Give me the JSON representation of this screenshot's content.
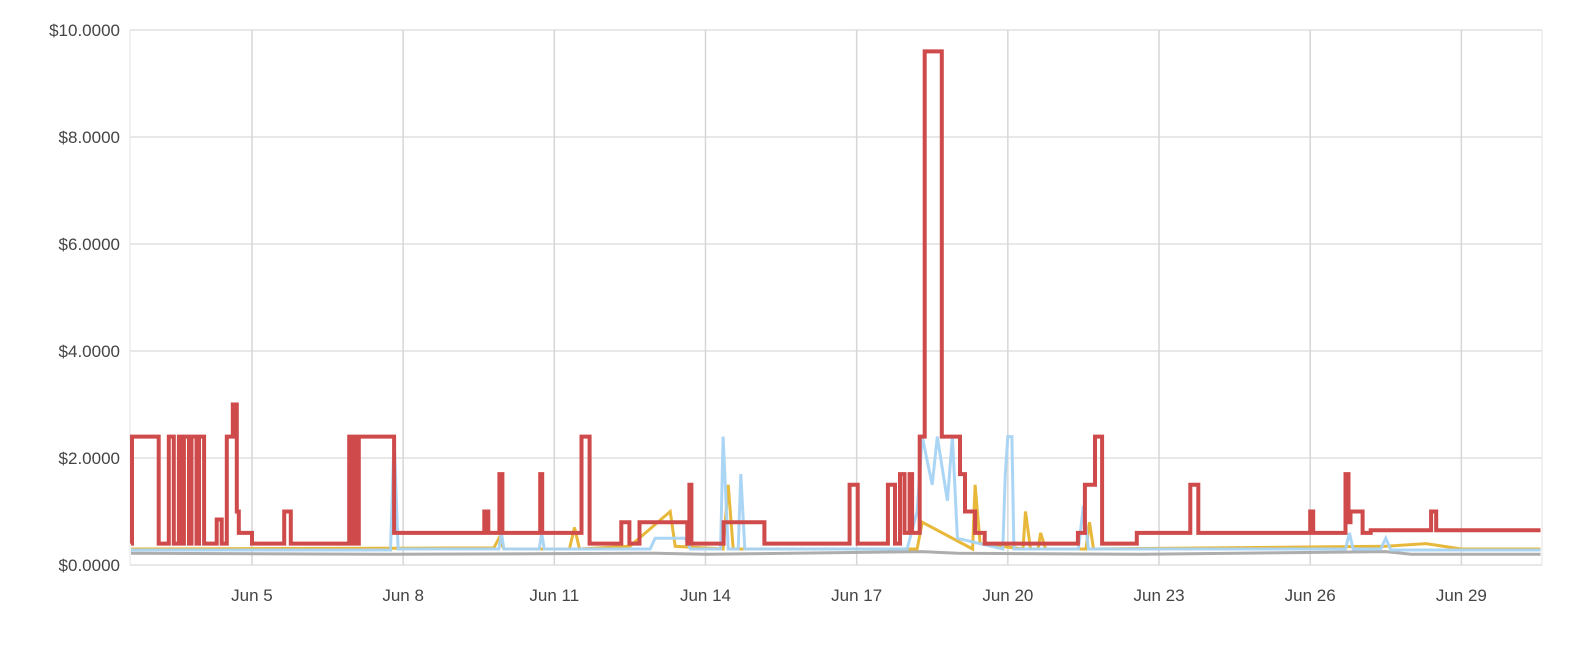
{
  "chart_data": {
    "type": "line",
    "title": "",
    "xlabel": "",
    "ylabel": "",
    "xlim": [
      2.58,
      30.6
    ],
    "ylim": [
      0,
      10
    ],
    "grid": true,
    "legend": "none",
    "y_ticks": [
      {
        "value": 0,
        "label": "$0.0000"
      },
      {
        "value": 2,
        "label": "$2.0000"
      },
      {
        "value": 4,
        "label": "$4.0000"
      },
      {
        "value": 6,
        "label": "$6.0000"
      },
      {
        "value": 8,
        "label": "$8.0000"
      },
      {
        "value": 10,
        "label": "$10.0000"
      }
    ],
    "x_ticks": [
      {
        "value": 5,
        "label": "Jun 5"
      },
      {
        "value": 8,
        "label": "Jun 8"
      },
      {
        "value": 11,
        "label": "Jun 11"
      },
      {
        "value": 14,
        "label": "Jun 14"
      },
      {
        "value": 17,
        "label": "Jun 17"
      },
      {
        "value": 20,
        "label": "Jun 20"
      },
      {
        "value": 23,
        "label": "Jun 23"
      },
      {
        "value": 26,
        "label": "Jun 26"
      },
      {
        "value": 29,
        "label": "Jun 29"
      }
    ],
    "series": [
      {
        "name": "gray",
        "color": "#a9a9a9",
        "step": false,
        "points": [
          [
            2.6,
            0.22
          ],
          [
            7.8,
            0.2
          ],
          [
            13,
            0.22
          ],
          [
            14,
            0.2
          ],
          [
            18.3,
            0.25
          ],
          [
            19,
            0.22
          ],
          [
            22.5,
            0.2
          ],
          [
            27.5,
            0.25
          ],
          [
            28,
            0.2
          ],
          [
            30.57,
            0.2
          ]
        ]
      },
      {
        "name": "yellow",
        "color": "#e6b42e",
        "step": false,
        "points": [
          [
            2.6,
            0.3
          ],
          [
            9.8,
            0.32
          ],
          [
            9.9,
            0.5
          ],
          [
            10,
            0.3
          ],
          [
            11.3,
            0.3
          ],
          [
            11.4,
            0.7
          ],
          [
            11.5,
            0.3
          ],
          [
            12.5,
            0.35
          ],
          [
            13.3,
            1.0
          ],
          [
            13.4,
            0.35
          ],
          [
            14.35,
            0.3
          ],
          [
            14.45,
            1.5
          ],
          [
            14.55,
            0.3
          ],
          [
            18.2,
            0.3
          ],
          [
            18.3,
            0.8
          ],
          [
            19.3,
            0.3
          ],
          [
            19.35,
            1.5
          ],
          [
            19.45,
            0.4
          ],
          [
            20.3,
            0.3
          ],
          [
            20.35,
            1.0
          ],
          [
            20.45,
            0.3
          ],
          [
            20.6,
            0.3
          ],
          [
            20.65,
            0.6
          ],
          [
            20.75,
            0.3
          ],
          [
            21.55,
            0.3
          ],
          [
            21.62,
            0.8
          ],
          [
            21.7,
            0.3
          ],
          [
            27.5,
            0.35
          ],
          [
            28.3,
            0.4
          ],
          [
            29,
            0.3
          ],
          [
            30.57,
            0.3
          ]
        ]
      },
      {
        "name": "blue",
        "color": "#a7d3f4",
        "step": false,
        "points": [
          [
            2.6,
            0.28
          ],
          [
            7.75,
            0.28
          ],
          [
            7.82,
            2.4
          ],
          [
            7.9,
            0.3
          ],
          [
            9.9,
            0.3
          ],
          [
            9.95,
            0.6
          ],
          [
            10,
            0.3
          ],
          [
            10.7,
            0.3
          ],
          [
            10.75,
            0.6
          ],
          [
            10.8,
            0.3
          ],
          [
            12.9,
            0.3
          ],
          [
            13.0,
            0.5
          ],
          [
            13.6,
            0.5
          ],
          [
            13.7,
            0.3
          ],
          [
            14.3,
            0.3
          ],
          [
            14.35,
            2.4
          ],
          [
            14.45,
            0.3
          ],
          [
            14.65,
            0.3
          ],
          [
            14.7,
            1.7
          ],
          [
            14.78,
            0.3
          ],
          [
            18.0,
            0.3
          ],
          [
            18.2,
            1.0
          ],
          [
            18.3,
            2.4
          ],
          [
            18.5,
            1.5
          ],
          [
            18.6,
            2.4
          ],
          [
            18.8,
            1.2
          ],
          [
            18.9,
            2.4
          ],
          [
            19.0,
            0.5
          ],
          [
            19.9,
            0.3
          ],
          [
            19.95,
            1.7
          ],
          [
            20.0,
            2.4
          ],
          [
            20.08,
            2.4
          ],
          [
            20.12,
            0.3
          ],
          [
            21.4,
            0.3
          ],
          [
            21.5,
            1.1
          ],
          [
            21.6,
            0.3
          ],
          [
            26.7,
            0.3
          ],
          [
            26.78,
            0.6
          ],
          [
            26.85,
            0.3
          ],
          [
            27.4,
            0.3
          ],
          [
            27.5,
            0.5
          ],
          [
            27.6,
            0.28
          ],
          [
            30.57,
            0.28
          ]
        ]
      },
      {
        "name": "red",
        "color": "#cf4a4a",
        "step": true,
        "points": [
          [
            2.6,
            0.4
          ],
          [
            2.62,
            2.4
          ],
          [
            3.15,
            0.4
          ],
          [
            3.35,
            2.4
          ],
          [
            3.45,
            0.4
          ],
          [
            3.55,
            2.4
          ],
          [
            3.6,
            0.4
          ],
          [
            3.65,
            2.4
          ],
          [
            3.75,
            0.4
          ],
          [
            3.8,
            2.4
          ],
          [
            3.9,
            0.4
          ],
          [
            3.95,
            2.4
          ],
          [
            4.05,
            0.4
          ],
          [
            4.3,
            0.85
          ],
          [
            4.4,
            0.4
          ],
          [
            4.5,
            2.4
          ],
          [
            4.62,
            3.0
          ],
          [
            4.7,
            1.0
          ],
          [
            4.74,
            0.6
          ],
          [
            5.0,
            0.4
          ],
          [
            5.64,
            1.0
          ],
          [
            5.77,
            0.4
          ],
          [
            6.93,
            2.4
          ],
          [
            6.98,
            0.4
          ],
          [
            7.02,
            2.4
          ],
          [
            7.08,
            0.4
          ],
          [
            7.12,
            2.4
          ],
          [
            7.82,
            0.6
          ],
          [
            9.61,
            1.0
          ],
          [
            9.69,
            0.6
          ],
          [
            9.91,
            1.7
          ],
          [
            9.97,
            0.6
          ],
          [
            10.72,
            1.7
          ],
          [
            10.76,
            0.6
          ],
          [
            11.54,
            2.4
          ],
          [
            11.7,
            0.4
          ],
          [
            12.33,
            0.8
          ],
          [
            12.49,
            0.4
          ],
          [
            12.69,
            0.8
          ],
          [
            13.64,
            0.4
          ],
          [
            13.68,
            1.5
          ],
          [
            13.72,
            0.4
          ],
          [
            14.36,
            0.8
          ],
          [
            15.17,
            0.4
          ],
          [
            16.86,
            1.5
          ],
          [
            17.02,
            0.4
          ],
          [
            17.62,
            1.5
          ],
          [
            17.76,
            0.4
          ],
          [
            17.86,
            1.7
          ],
          [
            17.95,
            0.6
          ],
          [
            18.05,
            1.7
          ],
          [
            18.1,
            0.6
          ],
          [
            18.25,
            2.4
          ],
          [
            18.35,
            9.6
          ],
          [
            18.69,
            2.4
          ],
          [
            19.05,
            1.7
          ],
          [
            19.15,
            1.0
          ],
          [
            19.35,
            0.6
          ],
          [
            19.54,
            0.4
          ],
          [
            21.39,
            0.6
          ],
          [
            21.53,
            1.5
          ],
          [
            21.73,
            2.4
          ],
          [
            21.87,
            0.4
          ],
          [
            22.56,
            0.6
          ],
          [
            23.62,
            1.5
          ],
          [
            23.78,
            0.6
          ],
          [
            26.0,
            1.0
          ],
          [
            26.06,
            0.6
          ],
          [
            26.7,
            1.7
          ],
          [
            26.76,
            0.8
          ],
          [
            26.8,
            1.0
          ],
          [
            27.04,
            0.6
          ],
          [
            27.2,
            0.65
          ],
          [
            28.4,
            1.0
          ],
          [
            28.5,
            0.65
          ],
          [
            30.57,
            0.65
          ]
        ]
      }
    ]
  }
}
